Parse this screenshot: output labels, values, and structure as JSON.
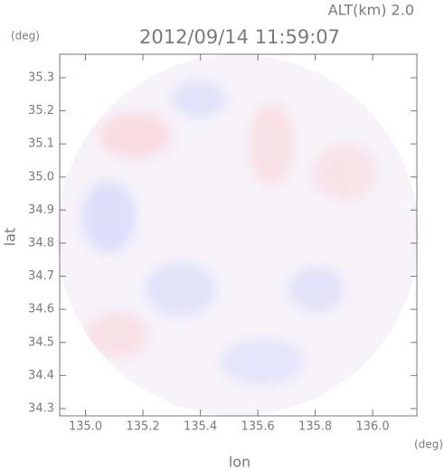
{
  "chart_data": {
    "type": "radar-field",
    "title": "2012/09/14 11:59:07",
    "annotation": "ALT(km) 2.0",
    "y_unit": "(deg)",
    "x_unit": "(deg)",
    "xlabel": "lon",
    "ylabel": "lat",
    "xlim": [
      134.91,
      136.154
    ],
    "ylim": [
      34.278,
      35.371
    ],
    "xticks": [
      {
        "value": 135.0,
        "label": "135.0"
      },
      135.2,
      135.4,
      135.6,
      135.8,
      {
        "value": 136.0,
        "label": "136.0"
      }
    ],
    "yticks": [
      34.3,
      34.4,
      34.5,
      34.6,
      34.7,
      34.8,
      34.9,
      {
        "value": 35.0,
        "label": "35.0"
      },
      35.1,
      35.2,
      35.3
    ]
  }
}
